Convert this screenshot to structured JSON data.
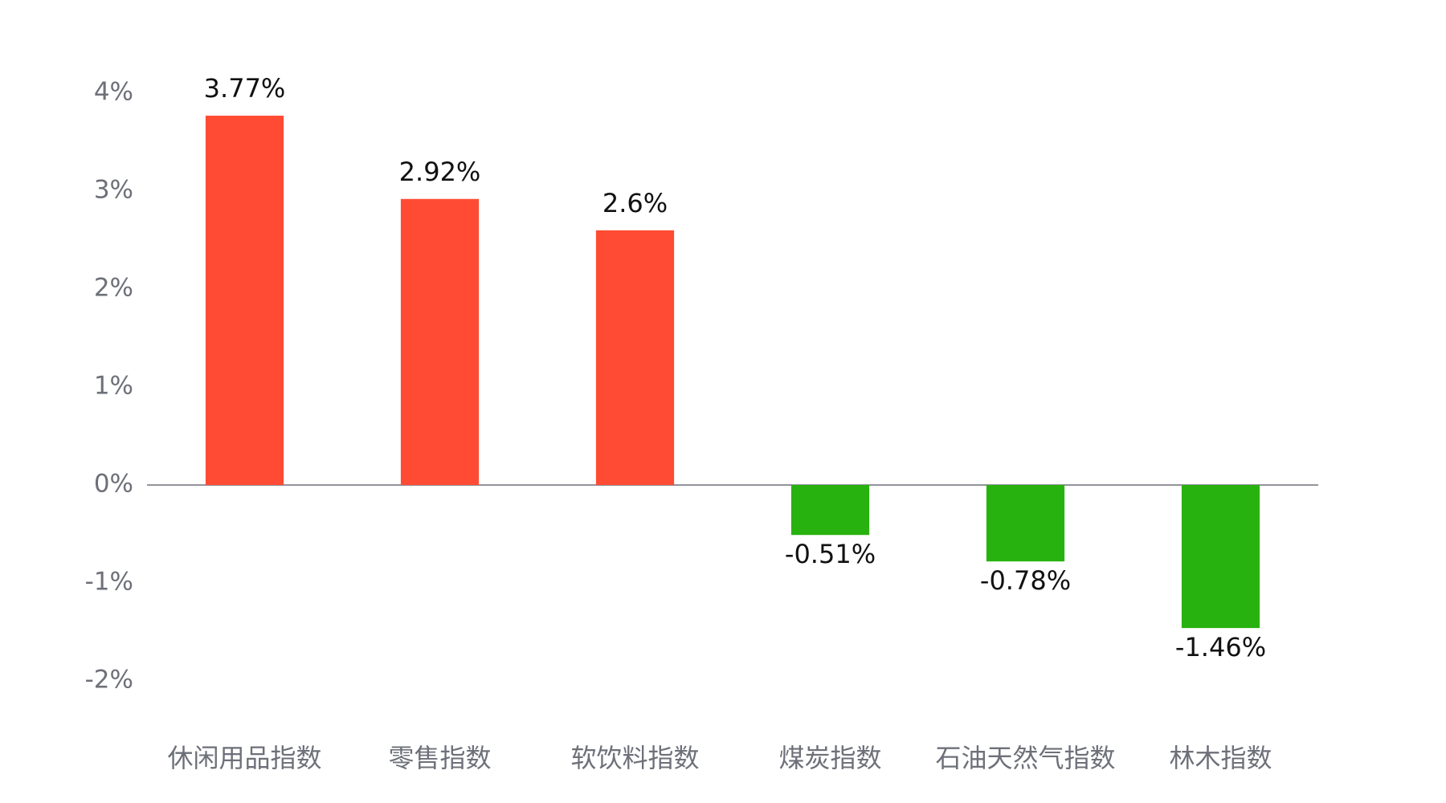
{
  "chart_data": {
    "type": "bar",
    "categories": [
      "休闲用品指数",
      "零售指数",
      "软饮料指数",
      "煤炭指数",
      "石油天然气指数",
      "林木指数"
    ],
    "values": [
      3.77,
      2.92,
      2.6,
      -0.51,
      -0.78,
      -1.46
    ],
    "value_labels": [
      "3.77%",
      "2.92%",
      "2.6%",
      "-0.51%",
      "-0.78%",
      "-1.46%"
    ],
    "colors": [
      "#ff4b33",
      "#ff4b33",
      "#ff4b33",
      "#28b20f",
      "#28b20f",
      "#28b20f"
    ],
    "ylim": [
      -2,
      4
    ],
    "yticks": [
      {
        "value": -2,
        "label": "-2%"
      },
      {
        "value": -1,
        "label": "-1%"
      },
      {
        "value": 0,
        "label": "0%"
      },
      {
        "value": 1,
        "label": "1%"
      },
      {
        "value": 2,
        "label": "2%"
      },
      {
        "value": 3,
        "label": "3%"
      },
      {
        "value": 4,
        "label": "4%"
      }
    ],
    "grid": false
  }
}
